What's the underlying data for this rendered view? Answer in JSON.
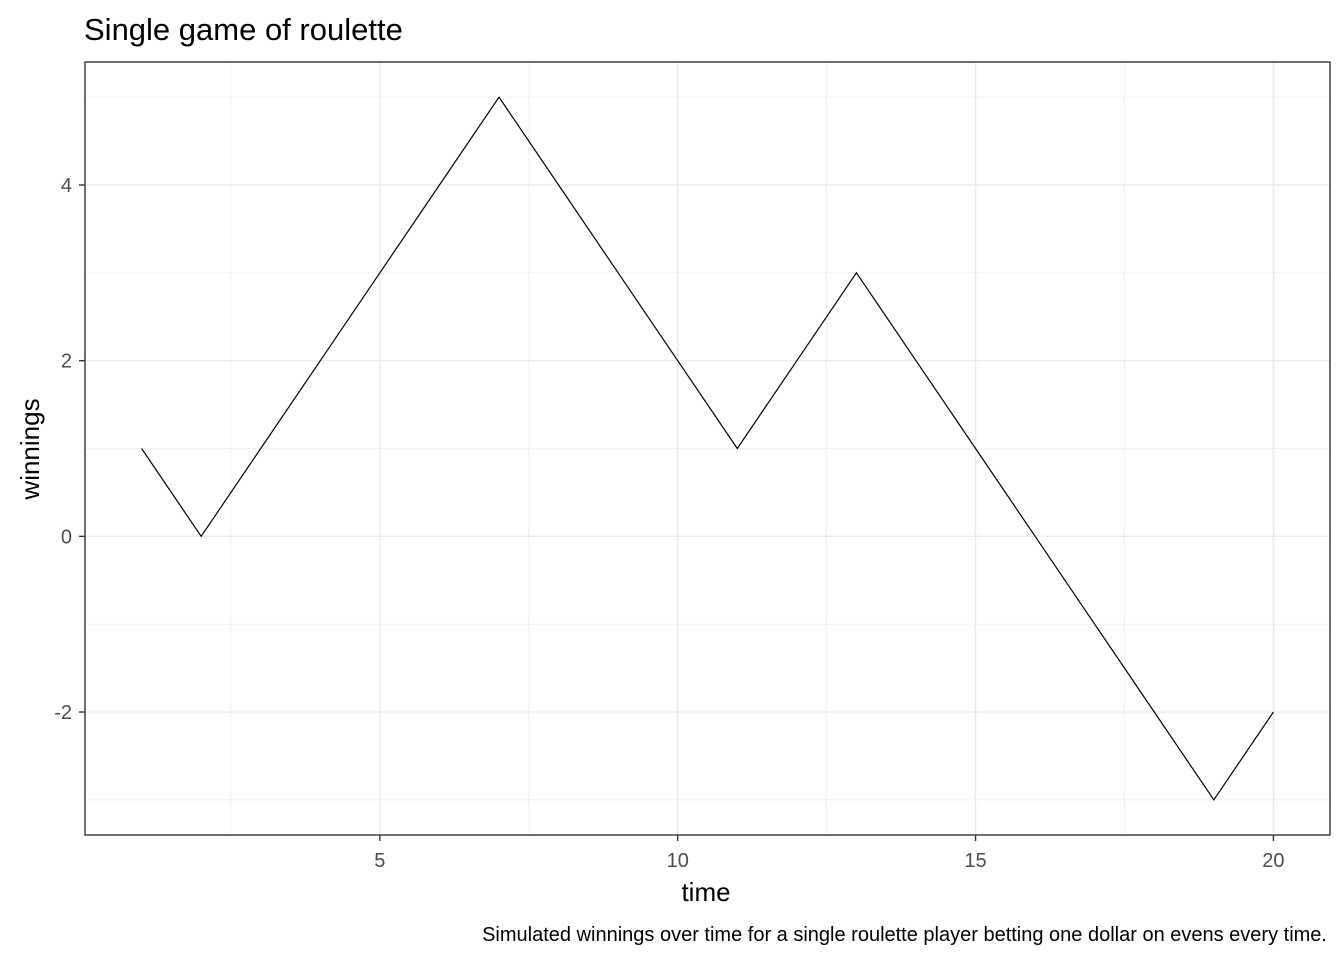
{
  "chart_data": {
    "type": "line",
    "title": "Single game of roulette",
    "xlabel": "time",
    "ylabel": "winnings",
    "caption": "Simulated winnings over time for a single roulette player betting one dollar on evens every time.",
    "xlim": [
      0.05,
      20.95
    ],
    "ylim": [
      -3.4,
      5.4
    ],
    "x_ticks": [
      5,
      10,
      15,
      20
    ],
    "y_ticks": [
      -2,
      0,
      2,
      4
    ],
    "x_tick_labels": [
      "5",
      "10",
      "15",
      "20"
    ],
    "y_tick_labels": [
      "-2",
      "0",
      "2",
      "4"
    ],
    "grid": true,
    "line_color": "#000000",
    "series": [
      {
        "x": [
          1,
          2,
          3,
          4,
          5,
          6,
          7,
          8,
          9,
          10,
          11,
          12,
          13,
          14,
          15,
          16,
          17,
          18,
          19,
          20
        ],
        "values": [
          1,
          0,
          1,
          2,
          3,
          4,
          5,
          4,
          3,
          2,
          1,
          2,
          3,
          2,
          1,
          0,
          -1,
          -2,
          -3,
          -2
        ]
      }
    ]
  }
}
